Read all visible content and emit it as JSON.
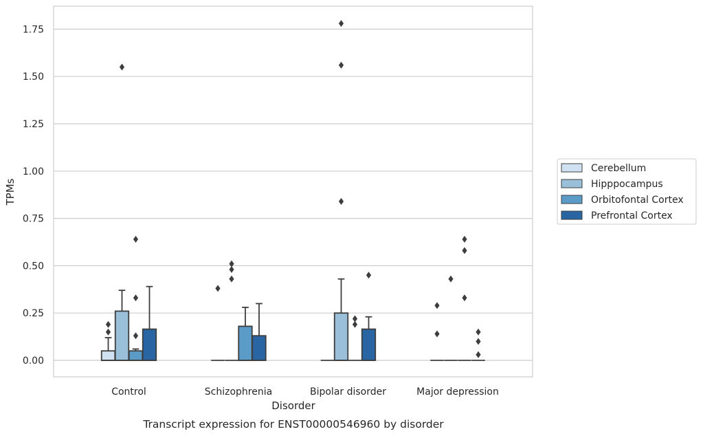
{
  "chart_data": {
    "type": "boxplot",
    "caption": "Transcript expression for ENST00000546960 by disorder",
    "xlabel": "Disorder",
    "ylabel": "TPMs",
    "ylim": [
      -0.085,
      1.87
    ],
    "yticks": [
      0.0,
      0.25,
      0.5,
      0.75,
      1.0,
      1.25,
      1.5,
      1.75
    ],
    "ytick_labels": [
      "0.00",
      "0.25",
      "0.50",
      "0.75",
      "1.00",
      "1.25",
      "1.50",
      "1.75"
    ],
    "grid": "horizontal",
    "legend_position": "right-center",
    "categories": [
      "Control",
      "Schizophrenia",
      "Bipolar disorder",
      "Major depression"
    ],
    "series": [
      {
        "name": "Cerebellum",
        "color": "#d0e2f2",
        "boxes": [
          {
            "q1": 0.0,
            "median": 0.0,
            "q3": 0.05,
            "whisker_low": 0.0,
            "whisker_high": 0.12,
            "outliers": [
              0.15,
              0.19
            ]
          },
          {
            "q1": 0.0,
            "median": 0.0,
            "q3": 0.0,
            "whisker_low": 0.0,
            "whisker_high": 0.0,
            "outliers": [
              0.38
            ]
          },
          {
            "q1": 0.0,
            "median": 0.0,
            "q3": 0.0,
            "whisker_low": 0.0,
            "whisker_high": 0.0,
            "outliers": []
          },
          {
            "q1": 0.0,
            "median": 0.0,
            "q3": 0.0,
            "whisker_low": 0.0,
            "whisker_high": 0.0,
            "outliers": [
              0.14,
              0.29
            ]
          }
        ]
      },
      {
        "name": "Hipppocampus",
        "color": "#9ac0d9",
        "boxes": [
          {
            "q1": 0.0,
            "median": 0.0,
            "q3": 0.26,
            "whisker_low": 0.0,
            "whisker_high": 0.37,
            "outliers": [
              1.55
            ]
          },
          {
            "q1": 0.0,
            "median": 0.0,
            "q3": 0.0,
            "whisker_low": 0.0,
            "whisker_high": 0.0,
            "outliers": [
              0.43,
              0.48,
              0.51
            ]
          },
          {
            "q1": 0.0,
            "median": 0.0,
            "q3": 0.25,
            "whisker_low": 0.0,
            "whisker_high": 0.43,
            "outliers": [
              0.84,
              1.56,
              1.78
            ]
          },
          {
            "q1": 0.0,
            "median": 0.0,
            "q3": 0.0,
            "whisker_low": 0.0,
            "whisker_high": 0.0,
            "outliers": [
              0.43
            ]
          }
        ]
      },
      {
        "name": "Orbitofontal Cortex",
        "color": "#5b9bc8",
        "boxes": [
          {
            "q1": 0.0,
            "median": 0.0,
            "q3": 0.05,
            "whisker_low": 0.0,
            "whisker_high": 0.06,
            "outliers": [
              0.13,
              0.33,
              0.64
            ]
          },
          {
            "q1": 0.0,
            "median": 0.0,
            "q3": 0.18,
            "whisker_low": 0.0,
            "whisker_high": 0.28,
            "outliers": []
          },
          {
            "q1": 0.0,
            "median": 0.0,
            "q3": 0.0,
            "whisker_low": 0.0,
            "whisker_high": 0.0,
            "outliers": [
              0.19,
              0.22
            ]
          },
          {
            "q1": 0.0,
            "median": 0.0,
            "q3": 0.0,
            "whisker_low": 0.0,
            "whisker_high": 0.0,
            "outliers": [
              0.33,
              0.58,
              0.64
            ]
          }
        ]
      },
      {
        "name": "Prefrontal Cortex",
        "color": "#2a65a3",
        "boxes": [
          {
            "q1": 0.0,
            "median": 0.0,
            "q3": 0.165,
            "whisker_low": 0.0,
            "whisker_high": 0.39,
            "outliers": []
          },
          {
            "q1": 0.0,
            "median": 0.0,
            "q3": 0.13,
            "whisker_low": 0.0,
            "whisker_high": 0.3,
            "outliers": []
          },
          {
            "q1": 0.0,
            "median": 0.0,
            "q3": 0.165,
            "whisker_low": 0.0,
            "whisker_high": 0.23,
            "outliers": [
              0.45
            ]
          },
          {
            "q1": 0.0,
            "median": 0.0,
            "q3": 0.0,
            "whisker_low": 0.0,
            "whisker_high": 0.0,
            "outliers": [
              0.03,
              0.1,
              0.15
            ]
          }
        ]
      }
    ]
  }
}
